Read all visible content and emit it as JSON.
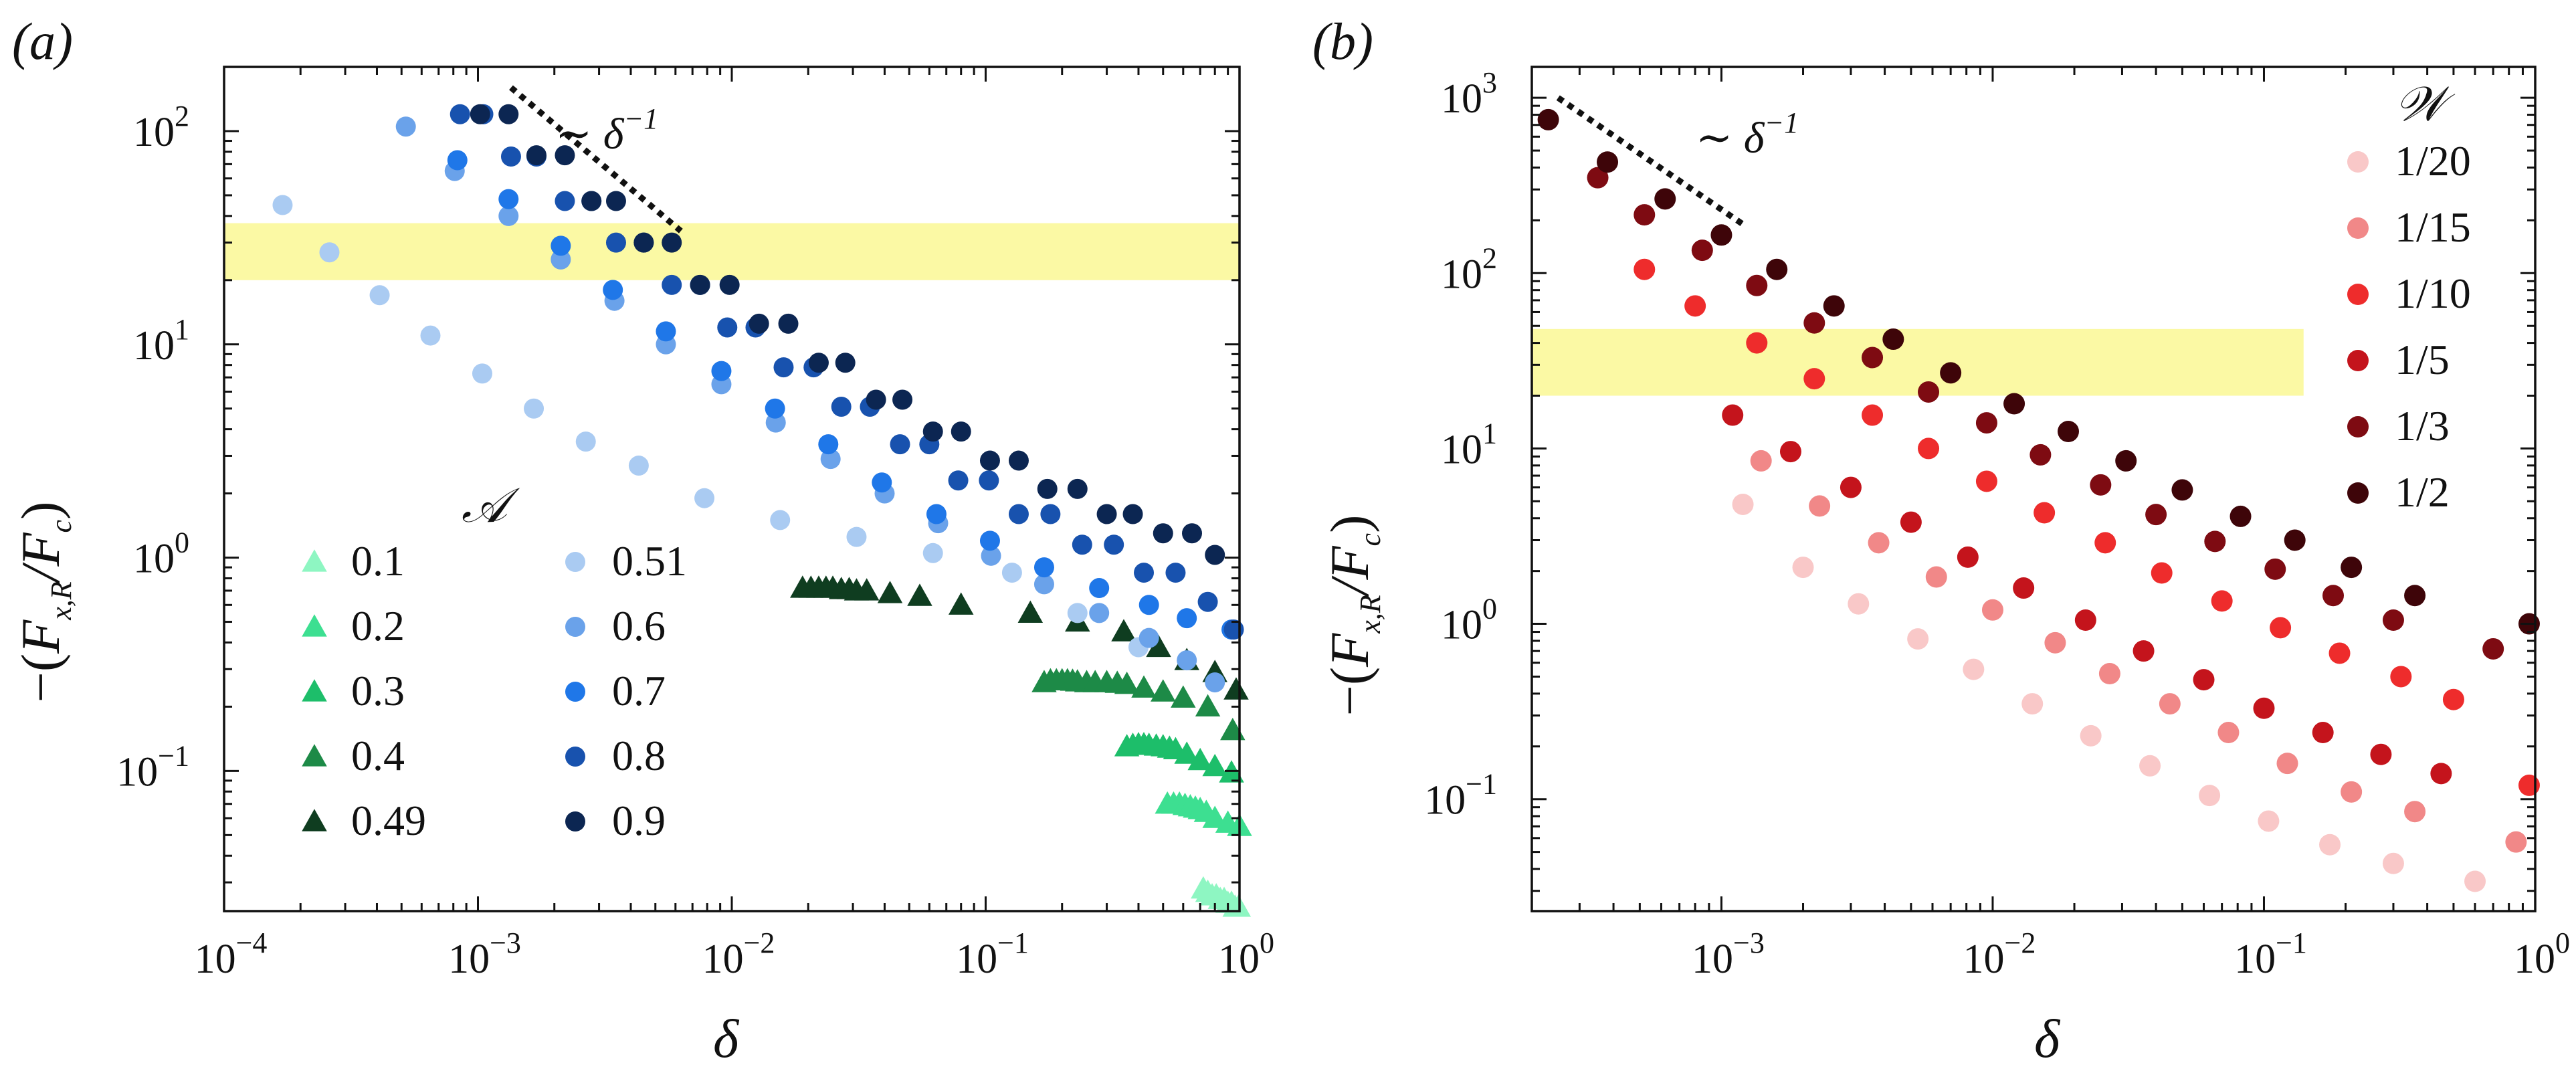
{
  "figure": {
    "panels": [
      "(a)",
      "(b)"
    ]
  },
  "colors": {
    "band": "#fbf9a4",
    "axis": "#111111",
    "guide": "#111111"
  },
  "chart_data": [
    {
      "type": "scatter",
      "panel_label": "(a)",
      "title": "",
      "xlabel": "δ",
      "ylabel": "−(F_{x,R}/F_c)",
      "xscale": "log",
      "yscale": "log",
      "xlim": [
        0.0001,
        1
      ],
      "ylim": [
        0.022,
        200
      ],
      "x_ticks": [
        {
          "base": "10",
          "exp": "−4"
        },
        {
          "base": "10",
          "exp": "−3"
        },
        {
          "base": "10",
          "exp": "−2"
        },
        {
          "base": "10",
          "exp": "−1"
        },
        {
          "base": "10",
          "exp": "0"
        }
      ],
      "y_ticks": [
        {
          "base": "10",
          "exp": "−1"
        },
        {
          "base": "10",
          "exp": "0"
        },
        {
          "base": "10",
          "exp": "1"
        },
        {
          "base": "10",
          "exp": "2"
        }
      ],
      "highlight_band": [
        20,
        37
      ],
      "reference_line": {
        "label": "∼ δ",
        "exp": "−1",
        "x": [
          0.00135,
          0.0063
        ],
        "y": [
          160,
          34
        ]
      },
      "legend_title": "𝒜",
      "legend_position": "bottom-left",
      "series": [
        {
          "name": "0.1",
          "marker": "triangle",
          "color": "#8ef6c2",
          "x": [
            0.72,
            0.75,
            0.78,
            0.81,
            0.84,
            0.87,
            0.9,
            0.93,
            0.96,
            0.99
          ],
          "y": [
            0.028,
            0.027,
            0.026,
            0.026,
            0.025,
            0.025,
            0.024,
            0.024,
            0.023,
            0.023
          ]
        },
        {
          "name": "0.2",
          "marker": "triangle",
          "color": "#3ddf91",
          "x": [
            0.52,
            0.55,
            0.58,
            0.61,
            0.64,
            0.67,
            0.7,
            0.74,
            0.8,
            0.9,
            1.0
          ],
          "y": [
            0.07,
            0.07,
            0.07,
            0.069,
            0.068,
            0.067,
            0.066,
            0.064,
            0.06,
            0.057,
            0.055
          ]
        },
        {
          "name": "0.3",
          "marker": "triangle",
          "color": "#1dbe6a",
          "x": [
            0.36,
            0.38,
            0.4,
            0.42,
            0.44,
            0.47,
            0.5,
            0.53,
            0.56,
            0.62,
            0.7,
            0.8,
            0.93
          ],
          "y": [
            0.13,
            0.132,
            0.133,
            0.133,
            0.132,
            0.131,
            0.13,
            0.128,
            0.126,
            0.12,
            0.112,
            0.105,
            0.098
          ]
        },
        {
          "name": "0.4",
          "marker": "triangle",
          "color": "#1d8a47",
          "x": [
            0.17,
            0.18,
            0.19,
            0.2,
            0.21,
            0.22,
            0.23,
            0.25,
            0.27,
            0.3,
            0.33,
            0.36,
            0.42,
            0.5,
            0.6,
            0.75,
            0.94
          ],
          "y": [
            0.26,
            0.265,
            0.265,
            0.265,
            0.265,
            0.264,
            0.262,
            0.26,
            0.26,
            0.26,
            0.258,
            0.255,
            0.245,
            0.235,
            0.22,
            0.2,
            0.155
          ]
        },
        {
          "name": "0.49",
          "marker": "triangle",
          "color": "#0f3d20",
          "x": [
            0.019,
            0.0205,
            0.022,
            0.0235,
            0.025,
            0.027,
            0.029,
            0.031,
            0.034,
            0.042,
            0.055,
            0.08,
            0.15,
            0.23,
            0.35,
            0.48,
            0.62,
            0.8,
            0.97
          ],
          "y": [
            0.72,
            0.72,
            0.72,
            0.72,
            0.72,
            0.71,
            0.71,
            0.7,
            0.7,
            0.68,
            0.66,
            0.6,
            0.55,
            0.5,
            0.45,
            0.38,
            0.33,
            0.29,
            0.24
          ]
        },
        {
          "name": "0.51",
          "marker": "circle",
          "color": "#aacbf2",
          "x": [
            0.00017,
            0.00026,
            0.00041,
            0.00065,
            0.00104,
            0.00166,
            0.00266,
            0.0043,
            0.0078,
            0.0155,
            0.031,
            0.062,
            0.127,
            0.23,
            0.4
          ],
          "y": [
            45,
            27,
            17,
            11,
            7.3,
            5.0,
            3.5,
            2.7,
            1.9,
            1.5,
            1.25,
            1.05,
            0.85,
            0.55,
            0.38
          ]
        },
        {
          "name": "0.6",
          "marker": "circle",
          "color": "#6aa2ea",
          "x": [
            0.00052,
            0.00081,
            0.00132,
            0.00212,
            0.00345,
            0.0055,
            0.0091,
            0.0149,
            0.0245,
            0.04,
            0.065,
            0.105,
            0.17,
            0.28,
            0.44,
            0.62,
            0.8
          ],
          "y": [
            105,
            65,
            40,
            25,
            16,
            10,
            6.5,
            4.3,
            2.9,
            2.0,
            1.45,
            1.02,
            0.75,
            0.55,
            0.42,
            0.33,
            0.26
          ]
        },
        {
          "name": "0.7",
          "marker": "circle",
          "color": "#1f77e8",
          "x": [
            0.00083,
            0.00132,
            0.00212,
            0.0034,
            0.0055,
            0.0091,
            0.0148,
            0.024,
            0.039,
            0.064,
            0.104,
            0.17,
            0.28,
            0.44,
            0.62,
            0.93
          ],
          "y": [
            73,
            48,
            29,
            18,
            11.5,
            7.5,
            5.0,
            3.4,
            2.25,
            1.6,
            1.2,
            0.9,
            0.72,
            0.6,
            0.52,
            0.46
          ]
        },
        {
          "name": "0.8",
          "marker": "circle",
          "color": "#1852ae",
          "x": [
            0.00085,
            0.00105,
            0.00135,
            0.0017,
            0.0022,
            0.0028,
            0.0035,
            0.0045,
            0.0058,
            0.0075,
            0.0096,
            0.0124,
            0.016,
            0.021,
            0.027,
            0.035,
            0.046,
            0.06,
            0.078,
            0.103,
            0.135,
            0.18,
            0.24,
            0.32,
            0.42,
            0.56,
            0.75,
            0.95
          ],
          "y": [
            120,
            120,
            76,
            76,
            47,
            47,
            30,
            30,
            19,
            19,
            12,
            12,
            7.8,
            7.8,
            5.1,
            5.1,
            3.4,
            3.4,
            2.3,
            2.3,
            1.6,
            1.6,
            1.15,
            1.15,
            0.85,
            0.85,
            0.62,
            0.46
          ]
        },
        {
          "name": "0.9",
          "marker": "circle",
          "color": "#0c2652",
          "x": [
            0.00102,
            0.00132,
            0.0017,
            0.0022,
            0.0028,
            0.0035,
            0.0045,
            0.0058,
            0.0075,
            0.0098,
            0.0128,
            0.0167,
            0.022,
            0.028,
            0.037,
            0.047,
            0.062,
            0.08,
            0.104,
            0.135,
            0.175,
            0.23,
            0.3,
            0.38,
            0.5,
            0.65,
            0.8
          ],
          "y": [
            120,
            120,
            77,
            77,
            47,
            47,
            30,
            30,
            19,
            19,
            12.5,
            12.5,
            8.2,
            8.2,
            5.5,
            5.5,
            3.9,
            3.9,
            2.85,
            2.85,
            2.1,
            2.1,
            1.6,
            1.6,
            1.3,
            1.3,
            1.03
          ]
        }
      ]
    },
    {
      "type": "scatter",
      "panel_label": "(b)",
      "title": "",
      "xlabel": "δ",
      "ylabel": "−(F_{x,R}/F_c)",
      "xscale": "log",
      "yscale": "log",
      "xlim": [
        0.0002,
        1
      ],
      "ylim": [
        0.023,
        1500
      ],
      "x_ticks": [
        {
          "base": "10",
          "exp": "−3"
        },
        {
          "base": "10",
          "exp": "−2"
        },
        {
          "base": "10",
          "exp": "−1"
        },
        {
          "base": "10",
          "exp": "0"
        }
      ],
      "y_ticks": [
        {
          "base": "10",
          "exp": "−1"
        },
        {
          "base": "10",
          "exp": "0"
        },
        {
          "base": "10",
          "exp": "1"
        },
        {
          "base": "10",
          "exp": "2"
        },
        {
          "base": "10",
          "exp": "3"
        }
      ],
      "highlight_band": [
        20,
        48
      ],
      "highlight_band_xmax": 0.14,
      "reference_line": {
        "label": "∼ δ",
        "exp": "−1",
        "x": [
          0.00025,
          0.0012
        ],
        "y": [
          1000,
          190
        ]
      },
      "legend_title": "𝒲",
      "legend_position": "top-right",
      "series": [
        {
          "name": "1/20",
          "marker": "circle",
          "color": "#f9c8c8",
          "x": [
            0.0012,
            0.002,
            0.0032,
            0.0053,
            0.0085,
            0.014,
            0.023,
            0.038,
            0.063,
            0.104,
            0.175,
            0.3,
            0.6
          ],
          "y": [
            4.8,
            2.1,
            1.3,
            0.82,
            0.55,
            0.35,
            0.23,
            0.155,
            0.105,
            0.075,
            0.055,
            0.043,
            0.034
          ]
        },
        {
          "name": "1/15",
          "marker": "circle",
          "color": "#f18888",
          "x": [
            0.0014,
            0.0023,
            0.0038,
            0.0062,
            0.01,
            0.017,
            0.027,
            0.045,
            0.074,
            0.122,
            0.21,
            0.36,
            0.85
          ],
          "y": [
            8.5,
            4.7,
            2.9,
            1.85,
            1.2,
            0.78,
            0.52,
            0.35,
            0.24,
            0.16,
            0.11,
            0.085,
            0.057
          ]
        },
        {
          "name": "1/10",
          "marker": "circle",
          "color": "#ee2c2c",
          "x": [
            0.00052,
            0.0008,
            0.00135,
            0.0022,
            0.0036,
            0.0058,
            0.0095,
            0.0155,
            0.026,
            0.042,
            0.07,
            0.115,
            0.19,
            0.32,
            0.5,
            0.95
          ],
          "y": [
            105,
            65,
            40,
            25,
            15.5,
            10,
            6.5,
            4.3,
            2.9,
            1.95,
            1.35,
            0.95,
            0.68,
            0.5,
            0.37,
            0.12
          ]
        },
        {
          "name": "1/5",
          "marker": "circle",
          "color": "#c4141c",
          "x": [
            0.0011,
            0.0018,
            0.003,
            0.005,
            0.0081,
            0.013,
            0.022,
            0.036,
            0.06,
            0.1,
            0.165,
            0.27,
            0.45
          ],
          "y": [
            15.5,
            9.6,
            6.0,
            3.8,
            2.4,
            1.6,
            1.05,
            0.7,
            0.48,
            0.33,
            0.24,
            0.18,
            0.14
          ]
        },
        {
          "name": "1/3",
          "marker": "circle",
          "color": "#7e0b12",
          "x": [
            0.00035,
            0.00052,
            0.00085,
            0.00135,
            0.0022,
            0.0036,
            0.0058,
            0.0095,
            0.015,
            0.025,
            0.04,
            0.066,
            0.11,
            0.18,
            0.3,
            0.7
          ],
          "y": [
            350,
            215,
            135,
            85,
            52,
            33,
            21,
            14,
            9.2,
            6.2,
            4.2,
            2.95,
            2.05,
            1.45,
            1.05,
            0.72
          ]
        },
        {
          "name": "1/2",
          "marker": "circle",
          "color": "#3e0509",
          "x": [
            0.00023,
            0.00038,
            0.00062,
            0.001,
            0.0016,
            0.0026,
            0.0043,
            0.007,
            0.012,
            0.019,
            0.031,
            0.05,
            0.082,
            0.13,
            0.21,
            0.36,
            0.95
          ],
          "y": [
            750,
            430,
            265,
            165,
            105,
            65,
            42,
            27,
            18,
            12.5,
            8.5,
            5.8,
            4.1,
            3.0,
            2.1,
            1.45,
            1.0
          ]
        }
      ]
    }
  ]
}
